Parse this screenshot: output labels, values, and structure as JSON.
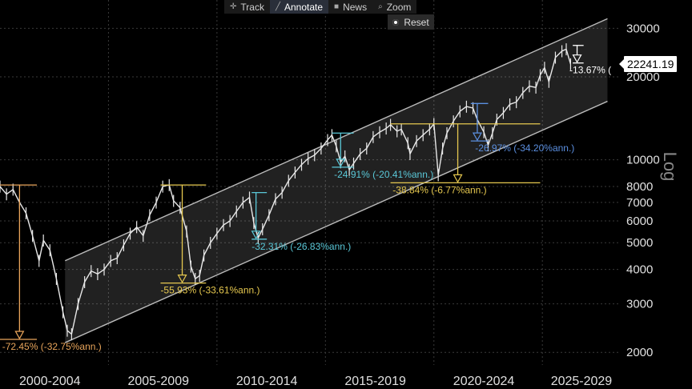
{
  "toolbar": [
    {
      "label": "Track",
      "icon": "crosshair-icon",
      "glyph": "✛",
      "active": false
    },
    {
      "label": "Annotate",
      "icon": "pencil-icon",
      "glyph": "╱",
      "active": true
    },
    {
      "label": "News",
      "icon": "news-icon",
      "glyph": "■",
      "active": false
    },
    {
      "label": "Zoom",
      "icon": "magnifier-icon",
      "glyph": "⌕",
      "active": false
    }
  ],
  "reset_label": "Reset",
  "scale_label": "Log",
  "last_price": "22241.19",
  "chart_data": {
    "type": "line",
    "y_scale": "log",
    "ylim": [
      1800,
      38000
    ],
    "xlim": [
      2000,
      2028.5
    ],
    "y_ticks": [
      2000,
      3000,
      4000,
      5000,
      6000,
      7000,
      8000,
      10000,
      20000,
      30000
    ],
    "x_tick_labels": [
      {
        "label": "2000-2004",
        "at": 2002.3
      },
      {
        "label": "2005-2009",
        "at": 2007.3
      },
      {
        "label": "2010-2014",
        "at": 2012.3
      },
      {
        "label": "2015-2019",
        "at": 2017.3
      },
      {
        "label": "2020-2024",
        "at": 2022.3
      },
      {
        "label": "2025-2029",
        "at": 2026.8
      }
    ],
    "price_color": "#e8e8e8",
    "channel": {
      "upper": [
        [
          2003.0,
          4300
        ],
        [
          2028.0,
          32500
        ]
      ],
      "lower": [
        [
          2003.0,
          2170
        ],
        [
          2028.0,
          16300
        ]
      ],
      "color": "#bbbbbb"
    },
    "series": [
      {
        "values": [
          [
            2000.0,
            8000
          ],
          [
            2000.3,
            7500
          ],
          [
            2000.6,
            7800
          ],
          [
            2000.9,
            7000
          ],
          [
            2001.2,
            6400
          ],
          [
            2001.5,
            5300
          ],
          [
            2001.8,
            4300
          ],
          [
            2002.0,
            5100
          ],
          [
            2002.3,
            4700
          ],
          [
            2002.6,
            3700
          ],
          [
            2002.9,
            2800
          ],
          [
            2003.1,
            2400
          ],
          [
            2003.3,
            2330
          ],
          [
            2003.6,
            3000
          ],
          [
            2003.9,
            3600
          ],
          [
            2004.2,
            3950
          ],
          [
            2004.5,
            3850
          ],
          [
            2004.8,
            4000
          ],
          [
            2005.1,
            4300
          ],
          [
            2005.4,
            4400
          ],
          [
            2005.7,
            4900
          ],
          [
            2006.0,
            5400
          ],
          [
            2006.3,
            5700
          ],
          [
            2006.6,
            5300
          ],
          [
            2006.9,
            6300
          ],
          [
            2007.2,
            7000
          ],
          [
            2007.5,
            8000
          ],
          [
            2007.8,
            8100
          ],
          [
            2008.0,
            7100
          ],
          [
            2008.3,
            6700
          ],
          [
            2008.6,
            5500
          ],
          [
            2008.8,
            4100
          ],
          [
            2009.0,
            3700
          ],
          [
            2009.2,
            3800
          ],
          [
            2009.4,
            4500
          ],
          [
            2009.7,
            5000
          ],
          [
            2010.0,
            5400
          ],
          [
            2010.3,
            5800
          ],
          [
            2010.6,
            6000
          ],
          [
            2010.9,
            6500
          ],
          [
            2011.2,
            7000
          ],
          [
            2011.5,
            7300
          ],
          [
            2011.7,
            5900
          ],
          [
            2011.9,
            5200
          ],
          [
            2012.1,
            5600
          ],
          [
            2012.4,
            6300
          ],
          [
            2012.7,
            7200
          ],
          [
            2013.0,
            7600
          ],
          [
            2013.3,
            8400
          ],
          [
            2013.6,
            9000
          ],
          [
            2013.9,
            9600
          ],
          [
            2014.2,
            10100
          ],
          [
            2014.5,
            10400
          ],
          [
            2014.8,
            11000
          ],
          [
            2015.1,
            11800
          ],
          [
            2015.3,
            12300
          ],
          [
            2015.5,
            11200
          ],
          [
            2015.7,
            9800
          ],
          [
            2015.9,
            10300
          ],
          [
            2016.1,
            9200
          ],
          [
            2016.3,
            9700
          ],
          [
            2016.6,
            10500
          ],
          [
            2016.9,
            11000
          ],
          [
            2017.2,
            12100
          ],
          [
            2017.5,
            12600
          ],
          [
            2017.8,
            13000
          ],
          [
            2018.0,
            13400
          ],
          [
            2018.3,
            12700
          ],
          [
            2018.5,
            12900
          ],
          [
            2018.8,
            11500
          ],
          [
            2018.9,
            10500
          ],
          [
            2019.2,
            11700
          ],
          [
            2019.5,
            12300
          ],
          [
            2019.8,
            12900
          ],
          [
            2020.0,
            13500
          ],
          [
            2020.2,
            8800
          ],
          [
            2020.4,
            11000
          ],
          [
            2020.6,
            12500
          ],
          [
            2020.9,
            13800
          ],
          [
            2021.2,
            15000
          ],
          [
            2021.5,
            15600
          ],
          [
            2021.8,
            15400
          ],
          [
            2022.0,
            14000
          ],
          [
            2022.3,
            12600
          ],
          [
            2022.5,
            11300
          ],
          [
            2022.7,
            12500
          ],
          [
            2022.9,
            14000
          ],
          [
            2023.2,
            14800
          ],
          [
            2023.5,
            15900
          ],
          [
            2023.8,
            16200
          ],
          [
            2024.1,
            17500
          ],
          [
            2024.4,
            18500
          ],
          [
            2024.7,
            18300
          ],
          [
            2024.9,
            20300
          ],
          [
            2025.1,
            21600
          ],
          [
            2025.3,
            19200
          ],
          [
            2025.6,
            23500
          ],
          [
            2025.9,
            24800
          ],
          [
            2026.1,
            25200
          ],
          [
            2026.3,
            22241
          ]
        ]
      }
    ],
    "drawdowns": [
      {
        "label": "-72.45% (-32.75%ann.)",
        "x0": 2000.0,
        "x1": 2001.7,
        "top": 8100,
        "bottom": 2230,
        "drop_at": 2000.9,
        "label_at": 2000.1,
        "color": "#e9a55b"
      },
      {
        "label": "-55.93% (-33.61%ann.)",
        "x0": 2007.4,
        "x1": 2009.5,
        "top": 8100,
        "bottom": 3570,
        "drop_at": 2008.4,
        "label_at": 2007.4,
        "color": "#e6c84f"
      },
      {
        "label": "-32.31% (-26.83%ann.)",
        "x0": 2011.6,
        "x1": 2012.3,
        "top": 7600,
        "bottom": 5150,
        "drop_at": 2011.8,
        "label_at": 2011.6,
        "color": "#5ac8d8"
      },
      {
        "label": "-24.91% (-20.41%ann.)",
        "x0": 2015.3,
        "x1": 2016.3,
        "top": 12500,
        "bottom": 9400,
        "drop_at": 2015.7,
        "label_at": 2015.4,
        "color": "#5ac8d8"
      },
      {
        "label": "-38.84% (-6.77%ann.)",
        "x0": 2018.0,
        "x1": 2024.9,
        "top": 13500,
        "bottom": 8250,
        "drop_at": 2021.1,
        "label_at": 2018.1,
        "color": "#e6c84f"
      },
      {
        "label": "-26.97% (-34.20%ann.)",
        "x0": 2021.7,
        "x1": 2022.5,
        "top": 16000,
        "bottom": 11700,
        "drop_at": 2022.0,
        "label_at": 2021.9,
        "color": "#5b8fe0"
      },
      {
        "label": "-13.67% (",
        "x0": 2026.4,
        "x1": 2026.9,
        "top": 26000,
        "bottom": 22450,
        "drop_at": 2026.6,
        "label_at": 2026.25,
        "color": "#ffffff"
      }
    ]
  }
}
